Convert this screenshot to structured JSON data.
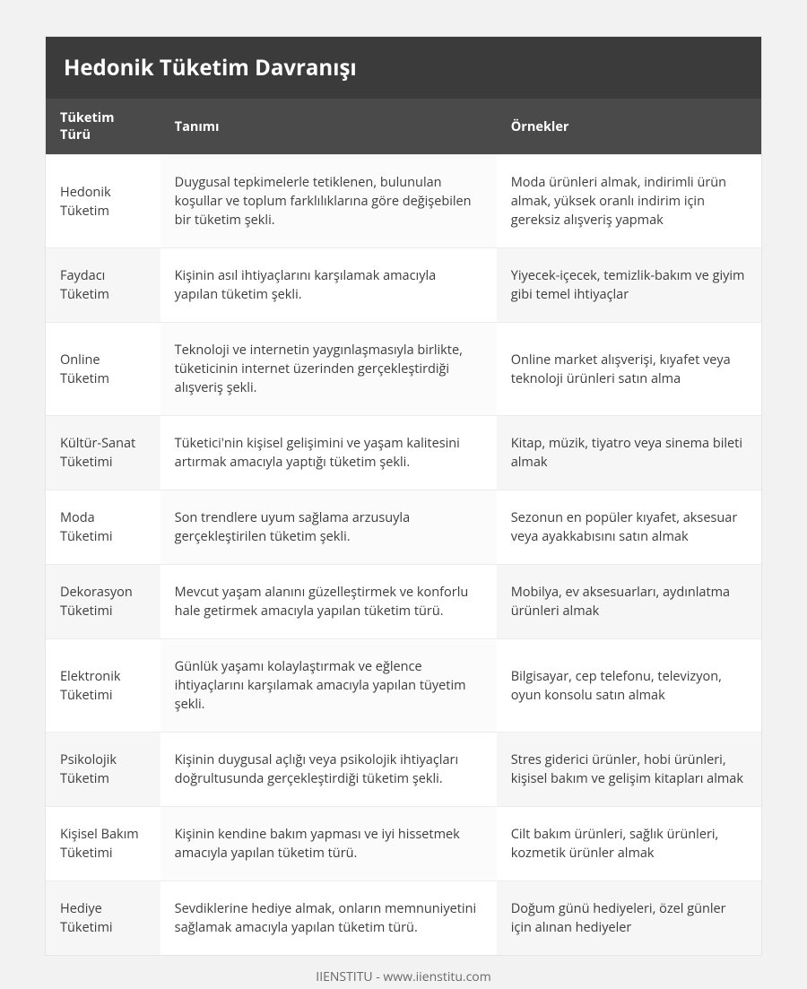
{
  "title": "Hedonik Tüketim Davranışı",
  "columns": [
    "Tüketim Türü",
    "Tanımı",
    "Örnekler"
  ],
  "rows": [
    {
      "type": "Hedonik Tüketim",
      "definition": "Duygusal tepkimelerle tetiklenen, bulunulan koşullar ve toplum farklılıklarına göre değişebilen bir tüketim şekli.",
      "examples": "Moda ürünleri almak, indirimli ürün almak, yüksek oranlı indirim için gereksiz alışveriş yapmak"
    },
    {
      "type": "Faydacı Tüketim",
      "definition": "Kişinin asıl ihtiyaçlarını karşılamak amacıyla yapılan tüketim şekli.",
      "examples": "Yiyecek-içecek, temizlik-bakım ve giyim gibi temel ihtiyaçlar"
    },
    {
      "type": "Online Tüketim",
      "definition": "Teknoloji ve internetin yaygınlaşmasıyla birlikte, tüketicinin internet üzerinden gerçekleştirdiği alışveriş şekli.",
      "examples": "Online market alışverişi, kıyafet veya teknoloji ürünleri satın alma"
    },
    {
      "type": "Kültür-Sanat Tüketimi",
      "definition": "Tüketici'nin kişisel gelişimini ve yaşam kalitesini artırmak amacıyla yaptığı tüketim şekli.",
      "examples": "Kitap, müzik, tiyatro veya sinema bileti almak"
    },
    {
      "type": "Moda Tüketimi",
      "definition": "Son trendlere uyum sağlama arzusuyla gerçekleştirilen tüketim şekli.",
      "examples": "Sezonun en popüler kıyafet, aksesuar veya ayakkabısını satın almak"
    },
    {
      "type": "Dekorasyon Tüketimi",
      "definition": "Mevcut yaşam alanını güzelleştirmek ve konforlu hale getirmek amacıyla yapılan tüketim türü.",
      "examples": "Mobilya, ev aksesuarları, aydınlatma ürünleri almak"
    },
    {
      "type": "Elektronik Tüketimi",
      "definition": "Günlük yaşamı kolaylaştırmak ve eğlence ihtiyaçlarını karşılamak amacıyla yapılan tüyetim şekli.",
      "examples": "Bilgisayar, cep telefonu, televizyon, oyun konsolu satın almak"
    },
    {
      "type": "Psikolojik Tüketim",
      "definition": "Kişinin duygusal açlığı veya psikolojik ihtiyaçları doğrultusunda gerçekleştirdiği tüketim şekli.",
      "examples": "Stres giderici ürünler, hobi ürünleri, kişisel bakım ve gelişim kitapları almak"
    },
    {
      "type": "Kişisel Bakım Tüketimi",
      "definition": "Kişinin kendine bakım yapması ve iyi hissetmek amacıyla yapılan tüketim türü.",
      "examples": "Cilt bakım ürünleri, sağlık ürünleri, kozmetik ürünler almak"
    },
    {
      "type": "Hediye Tüketimi",
      "definition": "Sevdiklerine hediye almak, onların memnuniyetini sağlamak amacıyla yapılan tüketim türü.",
      "examples": "Doğum günü hediyeleri, özel günler için alınan hediyeler"
    }
  ],
  "footer": "IIENSTITU - www.iienstitu.com",
  "style": {
    "page_bg": "#f2f2f2",
    "card_bg": "#ffffff",
    "title_bg": "#3b3b3b",
    "header_bg": "#4a4a4a",
    "text_color": "#3d3d3d",
    "header_text": "#ffffff",
    "border_color": "#ececec",
    "alt_row_light": "#fbfbfb",
    "alt_row_dark": "#f6f6f6",
    "footer_color": "#6a6a6a",
    "title_fontsize": 24,
    "header_fontsize": 14.5,
    "cell_fontsize": 14.5,
    "col_widths_pct": [
      16,
      47,
      37
    ]
  }
}
